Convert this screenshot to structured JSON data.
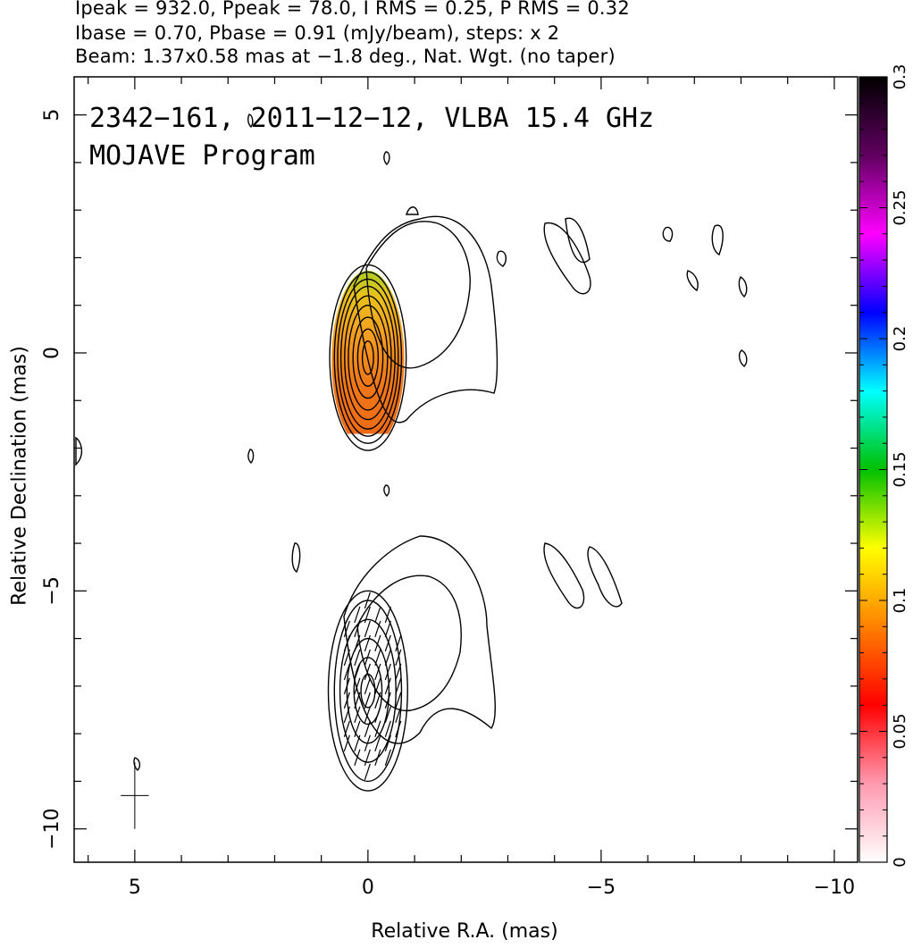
{
  "header": {
    "line1": "Ipeak = 932.0, Ppeak = 78.0, I RMS = 0.25, P RMS = 0.32",
    "line2": "Ibase = 0.70, Pbase = 0.91 (mJy/beam), steps: x 2",
    "line3": "Beam: 1.37x0.58 mas at −1.8 deg., Nat. Wgt. (no taper)"
  },
  "plot_label": {
    "line1": "2342−161, 2011−12−12, VLBA 15.4 GHz",
    "line2": "MOJAVE Program"
  },
  "chart_data": {
    "type": "contour",
    "title": "2342−161, 2011−12−12, VLBA 15.4 GHz",
    "subtitle": "MOJAVE Program",
    "xlabel": "Relative R.A. (mas)",
    "ylabel": "Relative Declination (mas)",
    "xlim": [
      6.3,
      -10.5
    ],
    "ylim": [
      -10.7,
      5.8
    ],
    "x_ticks": [
      5,
      0,
      -5,
      -10
    ],
    "x_tick_labels": [
      "5",
      "0",
      "−5",
      "−10"
    ],
    "y_ticks": [
      5,
      0,
      -5,
      -10
    ],
    "y_tick_labels": [
      "5",
      "0",
      "−5",
      "−10"
    ],
    "colorbar": {
      "range": [
        0,
        0.3
      ],
      "ticks": [
        0,
        0.05,
        0.1,
        0.15,
        0.2,
        0.25,
        0.3
      ],
      "tick_labels": [
        "0",
        "0.05",
        "0.1",
        "0.15",
        "0.2",
        "0.25",
        "0.3"
      ],
      "colors": [
        "#ffffff",
        "#ff9ab0",
        "#ff0000",
        "#ff8000",
        "#ffff00",
        "#00c000",
        "#00ffff",
        "#0000ff",
        "#ff00ff",
        "#600060",
        "#000000"
      ]
    },
    "stokes_i_peak": 932.0,
    "polarized_peak": 78.0,
    "i_rms": 0.25,
    "p_rms": 0.32,
    "i_base": 0.7,
    "p_base": 0.91,
    "contour_step": 2,
    "units": "mJy/beam",
    "beam": {
      "major_mas": 1.37,
      "minor_mas": 0.58,
      "pa_deg": -1.8
    },
    "weighting": "Nat. Wgt. (no taper)",
    "upper_panel": {
      "core_position": [
        0,
        0
      ],
      "contour_semi_axes_mas": [
        [
          0.12,
          0.35
        ],
        [
          0.22,
          0.6
        ],
        [
          0.32,
          0.85
        ],
        [
          0.42,
          1.1
        ],
        [
          0.5,
          1.3
        ],
        [
          0.58,
          1.5
        ],
        [
          0.65,
          1.65
        ],
        [
          0.72,
          1.8
        ],
        [
          0.82,
          1.95
        ]
      ],
      "fractional_polarization_range": [
        0.05,
        0.15
      ]
    },
    "lower_panel": {
      "core_position": [
        0,
        -7
      ],
      "contour_semi_axes_mas": [
        [
          0.15,
          0.35
        ],
        [
          0.3,
          0.7
        ],
        [
          0.45,
          1.1
        ],
        [
          0.6,
          1.5
        ],
        [
          0.72,
          1.9
        ],
        [
          0.85,
          2.1
        ]
      ]
    }
  }
}
